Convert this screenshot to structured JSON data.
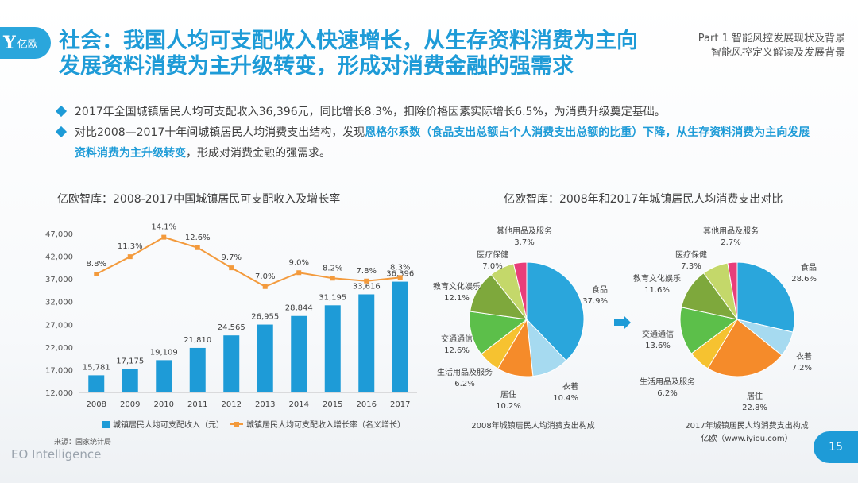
{
  "header": {
    "logo_mark": "Y",
    "logo_text": "亿欧",
    "title_line1": "社会：我国人均可支配收入快速增长，从生存资料消费为主向",
    "title_line2": "发展资料消费为主升级转变，形成对消费金融的强需求",
    "part_line1": "Part 1 智能风控发展现状及背景",
    "part_line2": "智能风控定义解读及发展背景"
  },
  "bullets": [
    {
      "text": "2017年全国城镇居民人均可支配收入36,396元，同比增长8.3%，扣除价格因素实际增长6.5%，为消费升级奠定基础。"
    },
    {
      "pre": "对比2008—2017十年间城镇居民人均消费支出结构，发现",
      "hl1": "恩格尔系数（食品支出总额占个人消费支出总额的比重）下降，从生存资料消费为主向发展资料消费为主升级转变",
      "post": "，形成对消费金融的强需求。"
    }
  ],
  "chart_data": [
    {
      "type": "bar",
      "title": "亿欧智库：2008-2017中国城镇居民可支配收入及增长率",
      "categories": [
        "2008",
        "2009",
        "2010",
        "2011",
        "2012",
        "2013",
        "2014",
        "2015",
        "2016",
        "2017"
      ],
      "series": [
        {
          "name": "城镇居民人均可支配收入（元）",
          "type": "bar",
          "values": [
            15781,
            17175,
            19109,
            21810,
            24565,
            26955,
            28844,
            31195,
            33616,
            36396
          ],
          "labels": [
            "15,781",
            "17,175",
            "19,109",
            "21,810",
            "24,565",
            "26,955",
            "28,844",
            "31,195",
            "33,616",
            "36,396"
          ],
          "color": "#1e9bd7"
        },
        {
          "name": "城镇居民人均可支配收入增长率（名义增长）",
          "type": "line",
          "values": [
            8.8,
            11.3,
            14.1,
            12.6,
            9.7,
            7.0,
            9.0,
            8.2,
            7.8,
            8.3
          ],
          "labels": [
            "8.8%",
            "11.3%",
            "14.1%",
            "12.6%",
            "9.7%",
            "7.0%",
            "9.0%",
            "8.2%",
            "7.8%",
            "8.3%"
          ],
          "color": "#f39a3c"
        }
      ],
      "ylim": [
        12000,
        47000
      ],
      "yticks": [
        "12,000",
        "17,000",
        "22,000",
        "27,000",
        "32,000",
        "37,000",
        "42,000",
        "47,000"
      ],
      "ytick_values": [
        12000,
        17000,
        22000,
        27000,
        32000,
        37000,
        42000,
        47000
      ],
      "line_ylim": [
        0,
        16
      ],
      "legend": "bottom",
      "source": "来源：国家统计局"
    },
    {
      "type": "pie",
      "title": "亿欧智库：2008年和2017年城镇居民人均消费支出对比",
      "pies": [
        {
          "caption": "2008年城镇居民人均消费支出构成",
          "slices": [
            {
              "label": "食品",
              "value": 37.9,
              "text": "37.9%",
              "color": "#2aa6dc"
            },
            {
              "label": "衣着",
              "value": 10.4,
              "text": "10.4%",
              "color": "#a6daf0"
            },
            {
              "label": "居住",
              "value": 10.2,
              "text": "10.2%",
              "color": "#f58b2a"
            },
            {
              "label": "生活用品及服务",
              "value": 6.2,
              "text": "6.2%",
              "color": "#f6c230"
            },
            {
              "label": "交通通信",
              "value": 12.6,
              "text": "12.6%",
              "color": "#5cbf4a"
            },
            {
              "label": "教育文化娱乐",
              "value": 12.1,
              "text": "12.1%",
              "color": "#7ea83c"
            },
            {
              "label": "医疗保健",
              "value": 7.0,
              "text": "7.0%",
              "color": "#c4d86a"
            },
            {
              "label": "其他用品及服务",
              "value": 3.7,
              "text": "3.7%",
              "color": "#e83e7a"
            }
          ]
        },
        {
          "caption": "2017年城镇居民人均消费支出构成",
          "slices": [
            {
              "label": "食品",
              "value": 28.6,
              "text": "28.6%",
              "color": "#2aa6dc"
            },
            {
              "label": "衣着",
              "value": 7.2,
              "text": "7.2%",
              "color": "#a6daf0"
            },
            {
              "label": "居住",
              "value": 22.8,
              "text": "22.8%",
              "color": "#f58b2a"
            },
            {
              "label": "生活用品及服务",
              "value": 6.2,
              "text": "6.2%",
              "color": "#f6c230"
            },
            {
              "label": "交通通信",
              "value": 13.6,
              "text": "13.6%",
              "color": "#5cbf4a"
            },
            {
              "label": "教育文化娱乐",
              "value": 11.6,
              "text": "11.6%",
              "color": "#7ea83c"
            },
            {
              "label": "医疗保健",
              "value": 7.3,
              "text": "7.3%",
              "color": "#c4d86a"
            },
            {
              "label": "其他用品及服务",
              "value": 2.7,
              "text": "2.7%",
              "color": "#e83e7a"
            }
          ]
        }
      ],
      "credit": "亿欧（www.iyiou.com）"
    }
  ],
  "footer": {
    "brand": "EO Intelligence",
    "page": "15"
  }
}
